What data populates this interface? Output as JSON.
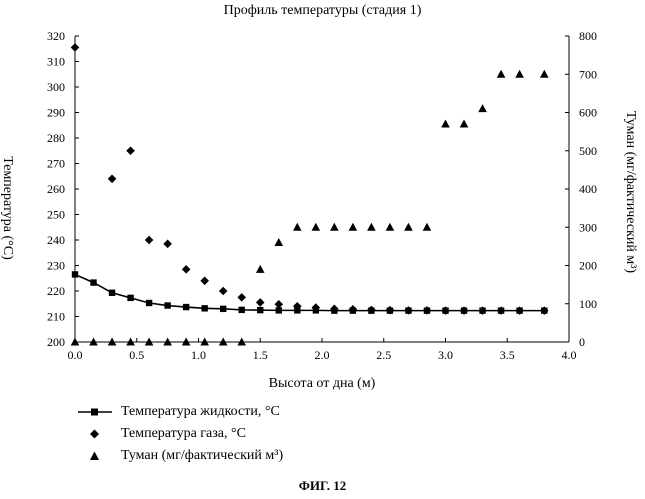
{
  "page": {
    "title": "Профиль температуры (стадия 1)",
    "figure_label": "ФИГ. 12"
  },
  "chart_data": {
    "type": "scatter",
    "title": "Профиль температуры (стадия 1)",
    "xlabel": "Высота от дна (м)",
    "ylabel_left": "Температура (°C)",
    "ylabel_right": "Туман (мг/фактический м³)",
    "xlim": [
      0,
      4
    ],
    "x_ticks": [
      "0.0",
      "0.5",
      "1.0",
      "1.5",
      "2.0",
      "2.5",
      "3.0",
      "3.5",
      "4.0"
    ],
    "ylim_left": [
      200,
      320
    ],
    "y_ticks_left": [
      "200",
      "210",
      "220",
      "230",
      "240",
      "250",
      "260",
      "270",
      "280",
      "290",
      "300",
      "310",
      "320"
    ],
    "ylim_right": [
      0,
      800
    ],
    "y_ticks_right": [
      "0",
      "100",
      "200",
      "300",
      "400",
      "500",
      "600",
      "700",
      "800"
    ],
    "grid": false,
    "legend_position": "bottom-left",
    "series": [
      {
        "name": "Температура жидкости, °C",
        "axis": "left",
        "marker": "square",
        "line": true,
        "x": [
          0.0,
          0.15,
          0.3,
          0.45,
          0.6,
          0.75,
          0.9,
          1.05,
          1.2,
          1.35,
          1.5,
          1.65,
          1.8,
          1.95,
          2.1,
          2.25,
          2.4,
          2.55,
          2.7,
          2.85,
          3.0,
          3.15,
          3.3,
          3.45,
          3.6,
          3.8
        ],
        "y": [
          226.5,
          223.3,
          219.3,
          217.3,
          215.3,
          214.3,
          213.7,
          213.2,
          213.0,
          212.6,
          212.5,
          212.4,
          212.4,
          212.4,
          212.3,
          212.3,
          212.3,
          212.3,
          212.3,
          212.3,
          212.3,
          212.3,
          212.3,
          212.3,
          212.3,
          212.3
        ]
      },
      {
        "name": "Температура газа, °C",
        "axis": "left",
        "marker": "diamond",
        "line": false,
        "x": [
          0.0,
          0.3,
          0.45,
          0.6,
          0.75,
          0.9,
          1.05,
          1.2,
          1.35,
          1.5,
          1.65,
          1.8,
          1.95,
          2.1,
          2.25,
          2.4,
          2.55,
          2.7,
          2.85,
          3.0,
          3.15,
          3.3,
          3.45,
          3.6,
          3.8
        ],
        "y": [
          315.5,
          264.0,
          275.0,
          240.0,
          238.5,
          228.5,
          224.0,
          220.0,
          217.5,
          215.5,
          214.8,
          214.0,
          213.5,
          213.0,
          212.8,
          212.6,
          212.5,
          212.4,
          212.4,
          212.3,
          212.3,
          212.3,
          212.3,
          212.3,
          212.3
        ]
      },
      {
        "name": "Туман (мг/фактический м³)",
        "axis": "right",
        "marker": "triangle",
        "line": false,
        "x": [
          0.0,
          0.15,
          0.3,
          0.45,
          0.6,
          0.75,
          0.9,
          1.05,
          1.2,
          1.35,
          1.5,
          1.65,
          1.8,
          1.95,
          2.1,
          2.25,
          2.4,
          2.55,
          2.7,
          2.85,
          3.0,
          3.15,
          3.3,
          3.45,
          3.6,
          3.8
        ],
        "y": [
          0,
          0,
          0,
          0,
          0,
          0,
          0,
          0,
          0,
          0,
          190,
          260,
          300,
          300,
          300,
          300,
          300,
          300,
          300,
          300,
          570,
          570,
          610,
          700,
          700,
          700
        ]
      }
    ]
  }
}
